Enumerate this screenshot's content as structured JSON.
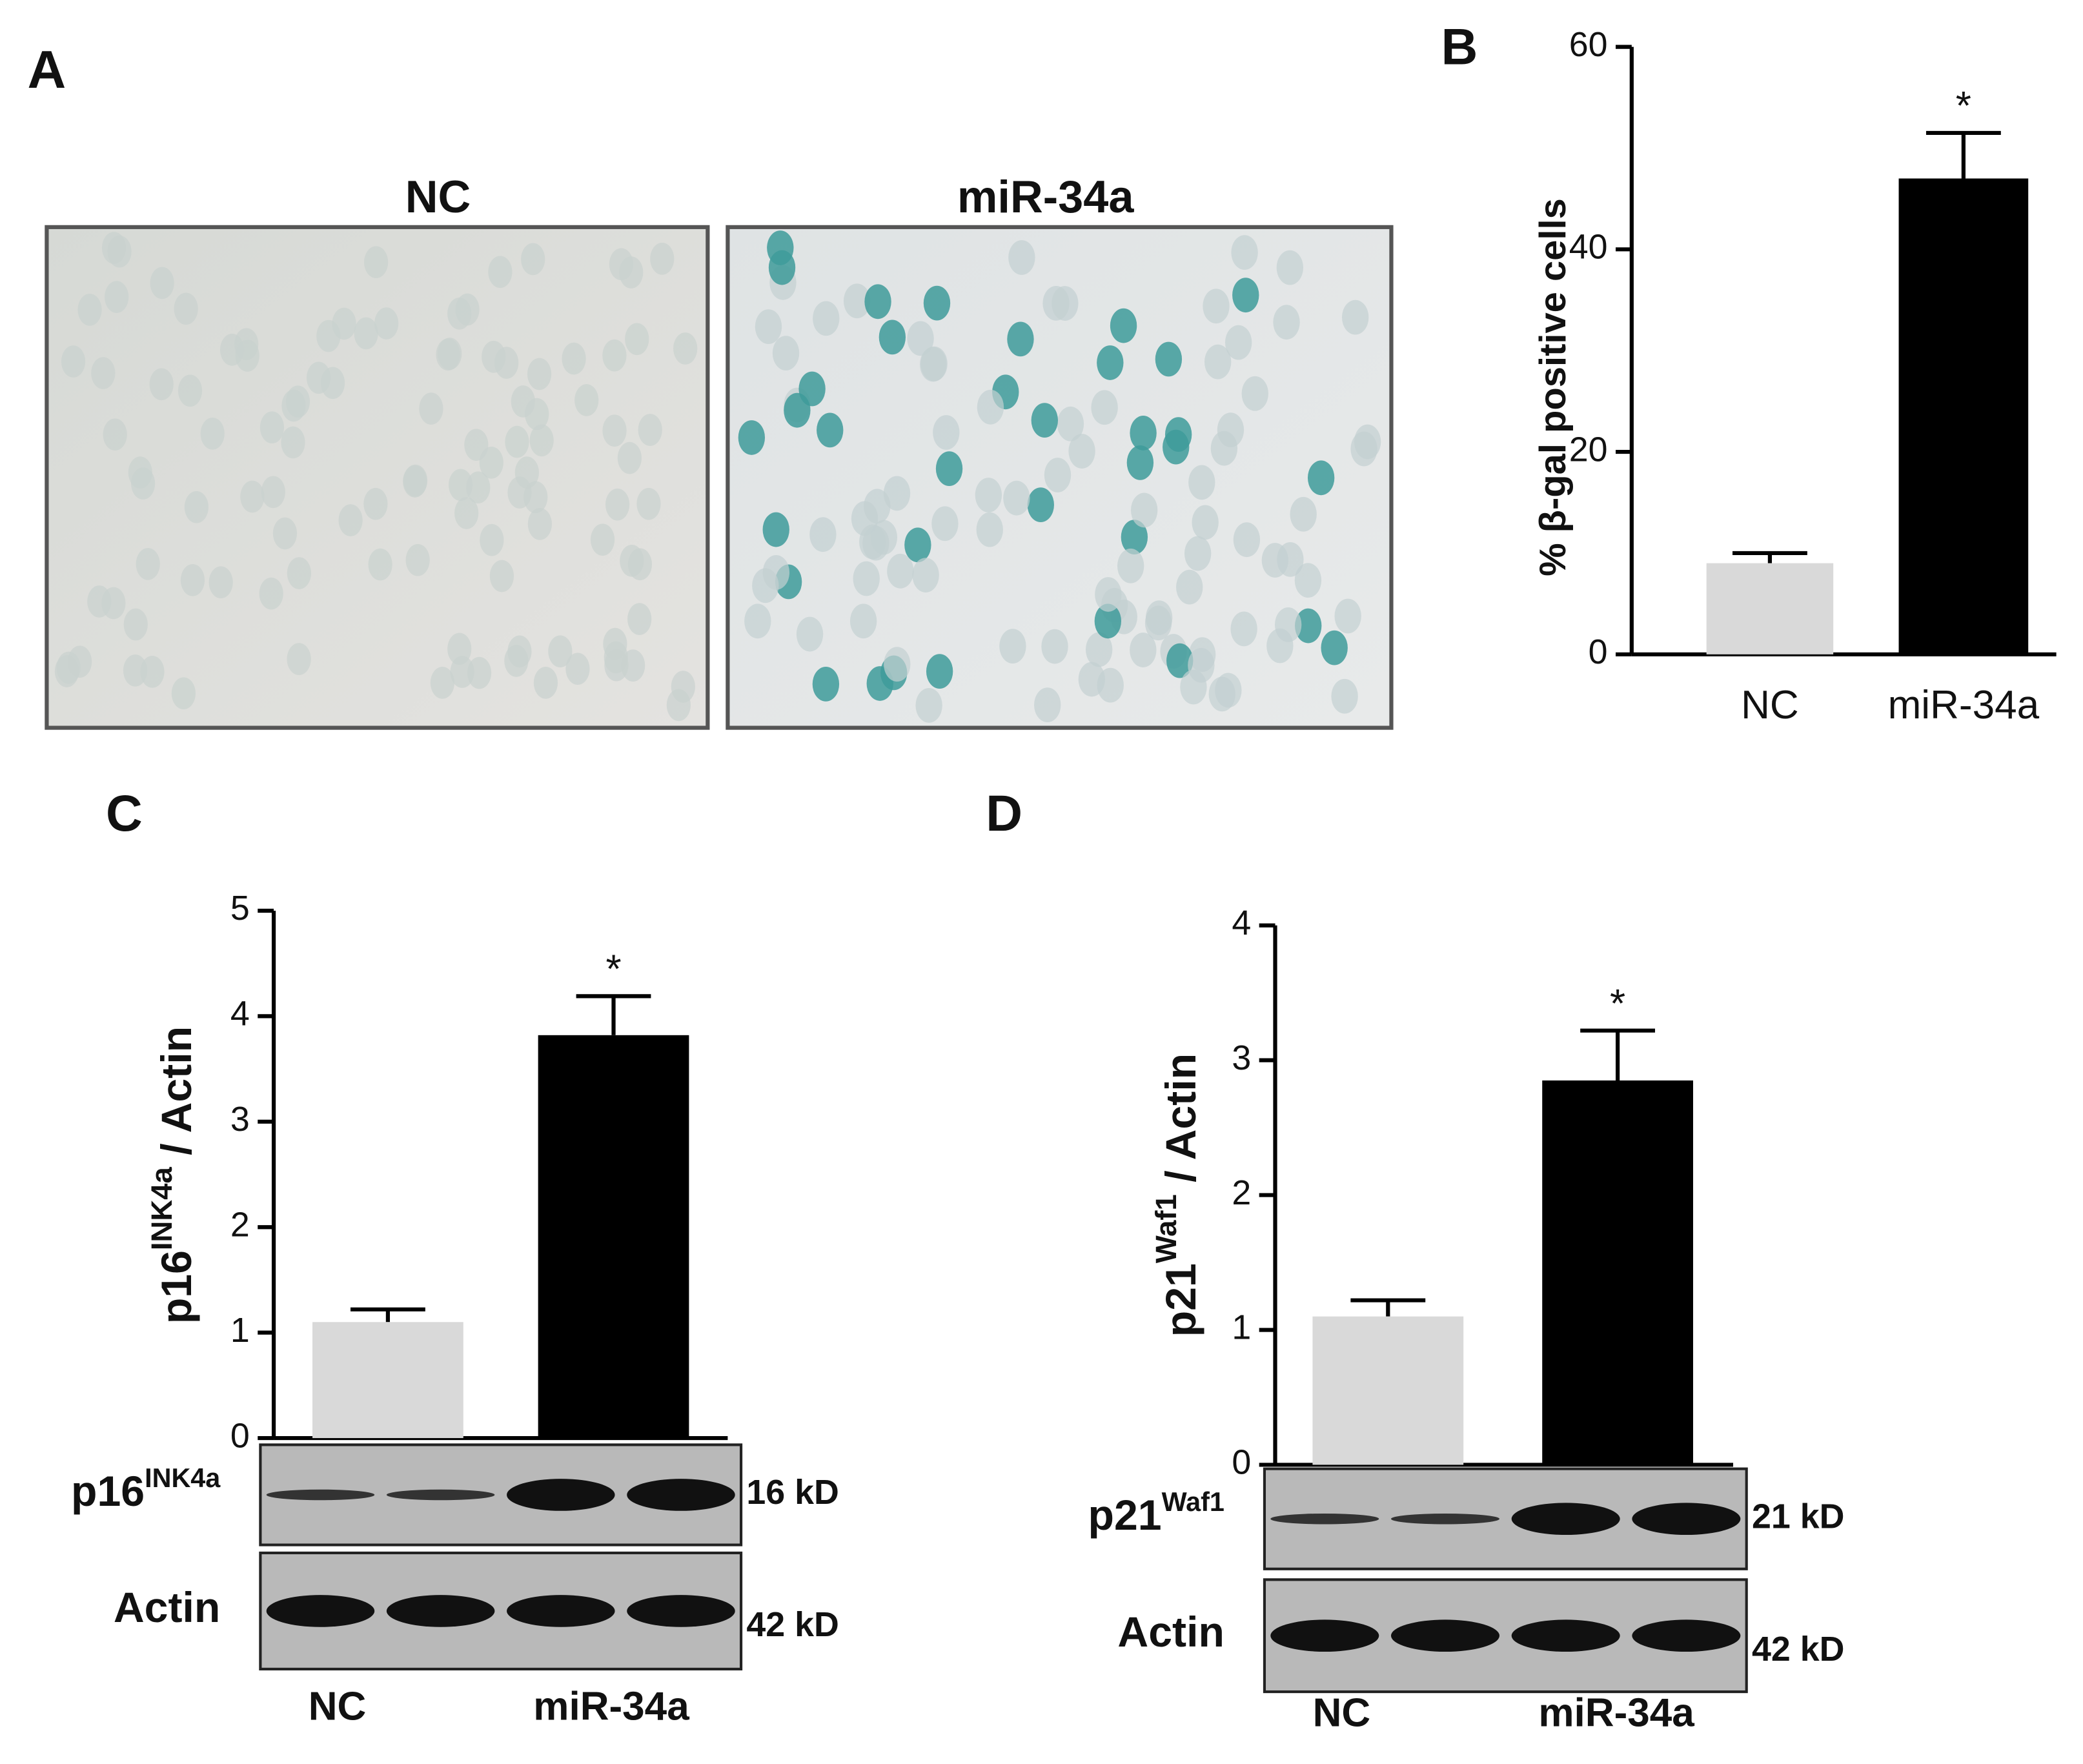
{
  "panel_a": {
    "label": "A",
    "images": [
      "NC",
      "miR-34a"
    ]
  },
  "chart_data": [
    {
      "type": "bar",
      "panel_label": "B",
      "ylabel": [
        "% β-gal positive cells"
      ],
      "categories": [
        "NC",
        "miR-34a"
      ],
      "values": [
        9,
        47
      ],
      "errors": [
        1,
        4.5
      ],
      "colors": [
        "#d9d9d9",
        "#000000"
      ],
      "annotation": "*",
      "ylim": [
        0,
        60
      ],
      "yticks": [
        0,
        20,
        40,
        60
      ]
    },
    {
      "type": "bar",
      "panel_label": "C",
      "ylabel": [
        "p16",
        "INK4a",
        " / Actin"
      ],
      "categories": [
        "NC",
        "miR-34a"
      ],
      "values": [
        1.1,
        3.82
      ],
      "errors": [
        0.12,
        0.37
      ],
      "colors": [
        "#d9d9d9",
        "#000000"
      ],
      "annotation": "*",
      "ylim": [
        0,
        5
      ],
      "yticks": [
        0,
        1,
        2,
        3,
        4,
        5
      ],
      "blots": [
        {
          "label": [
            "p16",
            "INK4a"
          ],
          "size": "16 kD"
        },
        {
          "label": [
            "Actin"
          ],
          "size": "42 kD"
        }
      ]
    },
    {
      "type": "bar",
      "panel_label": "D",
      "ylabel": [
        "p21",
        "Waf1",
        " / Actin"
      ],
      "categories": [
        "NC",
        "miR-34a"
      ],
      "values": [
        1.1,
        2.85
      ],
      "errors": [
        0.12,
        0.37
      ],
      "colors": [
        "#d9d9d9",
        "#000000"
      ],
      "annotation": "*",
      "ylim": [
        0,
        4
      ],
      "yticks": [
        0,
        1,
        2,
        3,
        4
      ],
      "blots": [
        {
          "label": [
            "p21",
            "Waf1"
          ],
          "size": "21 kD"
        },
        {
          "label": [
            "Actin"
          ],
          "size": "42 kD"
        }
      ]
    }
  ]
}
